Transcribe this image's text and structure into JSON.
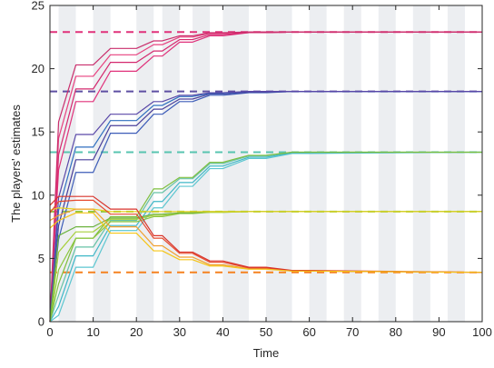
{
  "chart_data": {
    "type": "line",
    "title": "",
    "xlabel": "Time",
    "ylabel": "The players' estimates",
    "xlim": [
      0,
      100
    ],
    "ylim": [
      0,
      25
    ],
    "x_ticks": [
      "0",
      "10",
      "20",
      "30",
      "40",
      "50",
      "60",
      "70",
      "80",
      "90",
      "100"
    ],
    "y_ticks": [
      "0",
      "5",
      "10",
      "15",
      "20",
      "25"
    ],
    "grid": false,
    "legend": "none",
    "shaded_intervals": [
      [
        2,
        6
      ],
      [
        10,
        14
      ],
      [
        20,
        24
      ],
      [
        26,
        30
      ],
      [
        33,
        37
      ],
      [
        40,
        46
      ],
      [
        50,
        56
      ],
      [
        60,
        64
      ],
      [
        68,
        72
      ],
      [
        76,
        80
      ],
      [
        84,
        88
      ],
      [
        92,
        96
      ]
    ],
    "targets": [
      {
        "value": 22.9,
        "color": "#e0317a"
      },
      {
        "value": 18.2,
        "color": "#5e4fa2"
      },
      {
        "value": 13.4,
        "color": "#58c4b0"
      },
      {
        "value": 8.7,
        "color": "#8cc63f"
      },
      {
        "value": 3.9,
        "color": "#f58220"
      }
    ],
    "series": [
      {
        "group": "g1",
        "color": "#e0317a",
        "x": [
          0,
          2,
          6,
          10,
          14,
          20,
          24,
          26,
          30,
          33,
          37,
          40,
          46,
          50,
          56,
          60,
          100
        ],
        "y": [
          0,
          12.0,
          17.4,
          17.4,
          19.8,
          19.8,
          21.0,
          21.0,
          22.1,
          22.1,
          22.6,
          22.6,
          22.85,
          22.85,
          22.9,
          22.9,
          22.9
        ]
      },
      {
        "group": "g1",
        "color": "#d4286e",
        "x": [
          0,
          2,
          6,
          10,
          14,
          20,
          24,
          26,
          30,
          33,
          37,
          40,
          46,
          50,
          56,
          60,
          100
        ],
        "y": [
          0,
          13.2,
          18.4,
          18.4,
          20.5,
          20.5,
          21.4,
          21.4,
          22.3,
          22.3,
          22.7,
          22.7,
          22.85,
          22.85,
          22.9,
          22.9,
          22.9
        ]
      },
      {
        "group": "g1",
        "color": "#e8417f",
        "x": [
          0,
          2,
          6,
          10,
          14,
          20,
          24,
          26,
          30,
          33,
          37,
          40,
          46,
          50,
          56,
          60,
          100
        ],
        "y": [
          0,
          14.5,
          19.4,
          19.4,
          21.1,
          21.1,
          21.9,
          21.9,
          22.5,
          22.5,
          22.8,
          22.8,
          22.9,
          22.9,
          22.9,
          22.9,
          22.9
        ]
      },
      {
        "group": "g1",
        "color": "#c92e6c",
        "x": [
          0,
          2,
          6,
          10,
          14,
          20,
          24,
          26,
          30,
          33,
          37,
          40,
          46,
          50,
          56,
          60,
          100
        ],
        "y": [
          0,
          15.8,
          20.3,
          20.3,
          21.6,
          21.6,
          22.2,
          22.2,
          22.6,
          22.6,
          22.85,
          22.85,
          22.9,
          22.9,
          22.9,
          22.9,
          22.9
        ]
      },
      {
        "group": "g2",
        "color": "#3c5cb8",
        "x": [
          0,
          2,
          6,
          10,
          14,
          20,
          24,
          26,
          30,
          33,
          37,
          40,
          46,
          50,
          56,
          60,
          100
        ],
        "y": [
          0,
          6.5,
          11.8,
          11.8,
          14.9,
          14.9,
          16.4,
          16.4,
          17.4,
          17.4,
          17.9,
          17.9,
          18.1,
          18.1,
          18.2,
          18.2,
          18.2
        ]
      },
      {
        "group": "g2",
        "color": "#4a3f9a",
        "x": [
          0,
          2,
          6,
          10,
          14,
          20,
          24,
          26,
          30,
          33,
          37,
          40,
          46,
          50,
          56,
          60,
          100
        ],
        "y": [
          0,
          7.6,
          12.8,
          12.8,
          15.5,
          15.5,
          16.8,
          16.8,
          17.6,
          17.6,
          18.0,
          18.0,
          18.15,
          18.15,
          18.2,
          18.2,
          18.2
        ]
      },
      {
        "group": "g2",
        "color": "#2f6fbf",
        "x": [
          0,
          2,
          6,
          10,
          14,
          20,
          24,
          26,
          30,
          33,
          37,
          40,
          46,
          50,
          56,
          60,
          100
        ],
        "y": [
          0,
          8.8,
          13.8,
          13.8,
          15.9,
          15.9,
          17.1,
          17.1,
          17.8,
          17.8,
          18.05,
          18.05,
          18.2,
          18.2,
          18.2,
          18.2,
          18.2
        ]
      },
      {
        "group": "g2",
        "color": "#5a48a8",
        "x": [
          0,
          2,
          6,
          10,
          14,
          20,
          24,
          26,
          30,
          33,
          37,
          40,
          46,
          50,
          56,
          60,
          100
        ],
        "y": [
          0,
          9.8,
          14.8,
          14.8,
          16.4,
          16.4,
          17.4,
          17.4,
          17.9,
          17.9,
          18.1,
          18.1,
          18.2,
          18.2,
          18.2,
          18.2,
          18.2
        ]
      },
      {
        "group": "g3",
        "color": "#5cc6d0",
        "x": [
          0,
          2,
          6,
          10,
          14,
          20,
          24,
          26,
          30,
          33,
          37,
          40,
          46,
          50,
          56,
          60,
          100
        ],
        "y": [
          0,
          0.5,
          4.3,
          4.3,
          7.2,
          7.2,
          9.0,
          9.0,
          10.7,
          10.7,
          12.1,
          12.1,
          12.9,
          12.9,
          13.3,
          13.3,
          13.4
        ]
      },
      {
        "group": "g3",
        "color": "#3fb7c7",
        "x": [
          0,
          2,
          6,
          10,
          14,
          20,
          24,
          26,
          30,
          33,
          37,
          40,
          46,
          50,
          56,
          60,
          100
        ],
        "y": [
          0,
          1.2,
          5.2,
          5.2,
          7.6,
          7.6,
          9.5,
          9.5,
          11.0,
          11.0,
          12.3,
          12.3,
          13.0,
          13.0,
          13.35,
          13.35,
          13.4
        ]
      },
      {
        "group": "g3",
        "color": "#66c2a5",
        "x": [
          0,
          2,
          6,
          10,
          14,
          20,
          24,
          26,
          30,
          33,
          37,
          40,
          46,
          50,
          56,
          60,
          100
        ],
        "y": [
          0,
          2.1,
          5.9,
          5.9,
          8.0,
          8.0,
          10.2,
          10.2,
          11.3,
          11.3,
          12.5,
          12.5,
          13.1,
          13.1,
          13.4,
          13.4,
          13.4
        ]
      },
      {
        "group": "g3",
        "color": "#7fbf3f",
        "x": [
          0,
          2,
          6,
          10,
          14,
          20,
          24,
          26,
          30,
          33,
          37,
          40,
          46,
          50,
          56,
          60,
          100
        ],
        "y": [
          0,
          3.0,
          6.6,
          6.6,
          8.3,
          8.3,
          10.5,
          10.5,
          11.4,
          11.4,
          12.6,
          12.6,
          13.15,
          13.15,
          13.4,
          13.4,
          13.4
        ]
      },
      {
        "group": "g4",
        "color": "#8cc63f",
        "x": [
          0,
          2,
          6,
          10,
          14,
          20,
          24,
          26,
          30,
          33,
          37,
          40,
          46,
          50,
          56,
          60,
          100
        ],
        "y": [
          0,
          4.1,
          6.6,
          6.6,
          7.9,
          7.9,
          8.3,
          8.3,
          8.55,
          8.55,
          8.65,
          8.65,
          8.7,
          8.7,
          8.7,
          8.7,
          8.7
        ]
      },
      {
        "group": "g4",
        "color": "#a6cf3a",
        "x": [
          0,
          2,
          6,
          10,
          14,
          20,
          24,
          26,
          30,
          33,
          37,
          40,
          46,
          50,
          56,
          60,
          100
        ],
        "y": [
          0,
          5.5,
          7.1,
          7.1,
          8.1,
          8.1,
          8.4,
          8.4,
          8.6,
          8.6,
          8.65,
          8.65,
          8.7,
          8.7,
          8.7,
          8.7,
          8.7
        ]
      },
      {
        "group": "g4",
        "color": "#6cb33f",
        "x": [
          0,
          2,
          6,
          10,
          14,
          20,
          24,
          26,
          30,
          33,
          37,
          40,
          46,
          50,
          56,
          60,
          100
        ],
        "y": [
          0,
          6.8,
          7.5,
          7.5,
          8.2,
          8.2,
          8.5,
          8.5,
          8.6,
          8.6,
          8.7,
          8.7,
          8.7,
          8.7,
          8.7,
          8.7,
          8.7
        ]
      },
      {
        "group": "g4",
        "color": "#e6d320",
        "x": [
          0,
          2,
          6,
          10,
          14,
          20,
          24,
          26,
          30,
          33,
          37,
          40,
          46,
          50,
          56,
          60,
          100
        ],
        "y": [
          8.8,
          9.0,
          8.9,
          8.9,
          8.7,
          8.7,
          8.7,
          8.7,
          8.7,
          8.7,
          8.7,
          8.7,
          8.7,
          8.7,
          8.7,
          8.7,
          8.7
        ]
      },
      {
        "group": "g5",
        "color": "#f0a030",
        "x": [
          0,
          2,
          6,
          10,
          14,
          20,
          24,
          26,
          30,
          33,
          37,
          40,
          46,
          50,
          56,
          60,
          100
        ],
        "y": [
          8.0,
          8.4,
          8.9,
          8.9,
          7.5,
          7.5,
          6.0,
          6.0,
          5.1,
          5.1,
          4.5,
          4.5,
          4.2,
          4.2,
          4.0,
          4.0,
          3.9
        ]
      },
      {
        "group": "g5",
        "color": "#e64a2e",
        "x": [
          0,
          2,
          6,
          10,
          14,
          20,
          24,
          26,
          30,
          33,
          37,
          40,
          46,
          50,
          56,
          60,
          100
        ],
        "y": [
          8.6,
          9.5,
          9.6,
          9.6,
          8.5,
          8.5,
          6.6,
          6.6,
          5.4,
          5.4,
          4.7,
          4.7,
          4.25,
          4.25,
          4.0,
          4.0,
          3.9
        ]
      },
      {
        "group": "g5",
        "color": "#d9342b",
        "x": [
          0,
          2,
          6,
          10,
          14,
          20,
          24,
          26,
          30,
          33,
          37,
          40,
          46,
          50,
          56,
          60,
          100
        ],
        "y": [
          9.2,
          9.9,
          9.9,
          9.9,
          8.9,
          8.9,
          6.8,
          6.8,
          5.5,
          5.5,
          4.8,
          4.8,
          4.3,
          4.3,
          4.05,
          4.05,
          3.9
        ]
      },
      {
        "group": "g5",
        "color": "#f5c518",
        "x": [
          0,
          2,
          6,
          10,
          14,
          20,
          24,
          26,
          30,
          33,
          37,
          40,
          46,
          50,
          56,
          60,
          100
        ],
        "y": [
          7.4,
          8.0,
          8.6,
          8.6,
          7.0,
          7.0,
          5.6,
          5.6,
          4.9,
          4.9,
          4.4,
          4.4,
          4.15,
          4.15,
          4.0,
          4.0,
          3.9
        ]
      }
    ]
  }
}
